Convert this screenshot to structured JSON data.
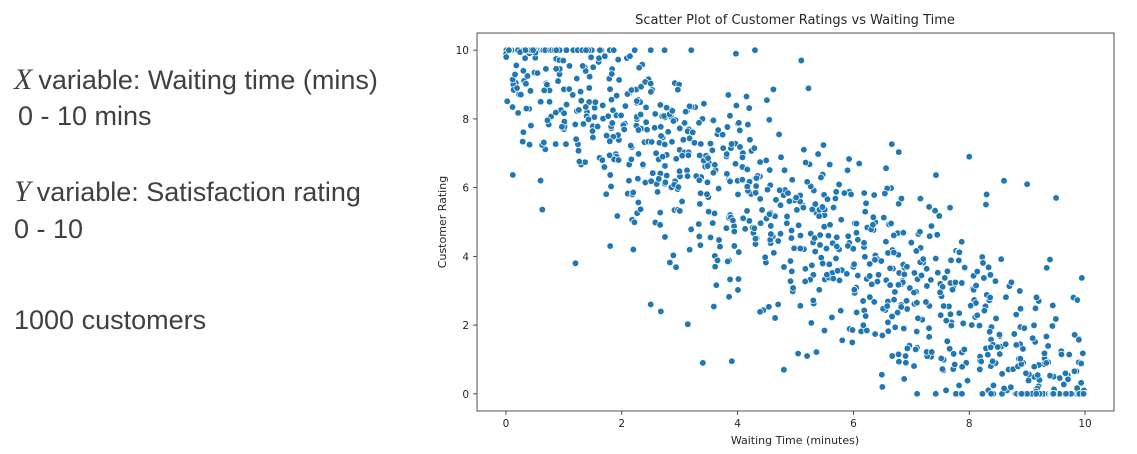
{
  "description": {
    "x_symbol": "X",
    "x_text": "variable: Waiting time (mins)",
    "x_range": "0 - 10 mins",
    "y_symbol": "Y",
    "y_text": "variable: Satisfaction rating",
    "y_range": "0 - 10",
    "sample": "1000 customers"
  },
  "chart_data": {
    "type": "scatter",
    "title": "Scatter Plot of Customer Ratings vs Waiting Time",
    "xlabel": "Waiting Time (minutes)",
    "ylabel": "Customer Rating",
    "xlim": [
      -0.5,
      10.5
    ],
    "ylim": [
      -0.5,
      10.5
    ],
    "xticks": [
      0,
      2,
      4,
      6,
      8,
      10
    ],
    "yticks": [
      0,
      2,
      4,
      6,
      8,
      10
    ],
    "grid": false,
    "point_color": "#1f77b4",
    "n_points": 1000,
    "trend": {
      "intercept": 10,
      "slope": -1,
      "noise_sd": 1.5,
      "clip": [
        0,
        10
      ]
    },
    "sample_points": [
      [
        0.1,
        10
      ],
      [
        0.3,
        9.4
      ],
      [
        0.5,
        10
      ],
      [
        0.6,
        8.5
      ],
      [
        0.9,
        9.1
      ],
      [
        1.0,
        7.7
      ],
      [
        1.2,
        3.8
      ],
      [
        1.4,
        8.2
      ],
      [
        1.7,
        6.6
      ],
      [
        1.8,
        4.3
      ],
      [
        2.2,
        4.2
      ],
      [
        2.5,
        2.6
      ],
      [
        2.5,
        10
      ],
      [
        3.0,
        7.1
      ],
      [
        3.2,
        10
      ],
      [
        3.4,
        0.9
      ],
      [
        3.5,
        5.3
      ],
      [
        3.9,
        0.95
      ],
      [
        4.0,
        6.2
      ],
      [
        4.3,
        10
      ],
      [
        4.7,
        2.6
      ],
      [
        4.8,
        0.7
      ],
      [
        5.2,
        1.1
      ],
      [
        5.1,
        9.7
      ],
      [
        5.5,
        5.2
      ],
      [
        5.8,
        3.6
      ],
      [
        6.1,
        6.7
      ],
      [
        6.5,
        1.7
      ],
      [
        6.5,
        0.2
      ],
      [
        6.9,
        1.1
      ],
      [
        7.0,
        4.4
      ],
      [
        7.1,
        0
      ],
      [
        7.5,
        3.2
      ],
      [
        7.6,
        0.1
      ],
      [
        8.0,
        6.9
      ],
      [
        8.3,
        5.8
      ],
      [
        8.6,
        6.2
      ],
      [
        8.8,
        0
      ],
      [
        9.0,
        6.1
      ],
      [
        9.2,
        2.7
      ],
      [
        9.5,
        5.7
      ],
      [
        9.7,
        0
      ],
      [
        9.8,
        2.8
      ],
      [
        9.9,
        1.6
      ],
      [
        10.0,
        0
      ]
    ]
  }
}
